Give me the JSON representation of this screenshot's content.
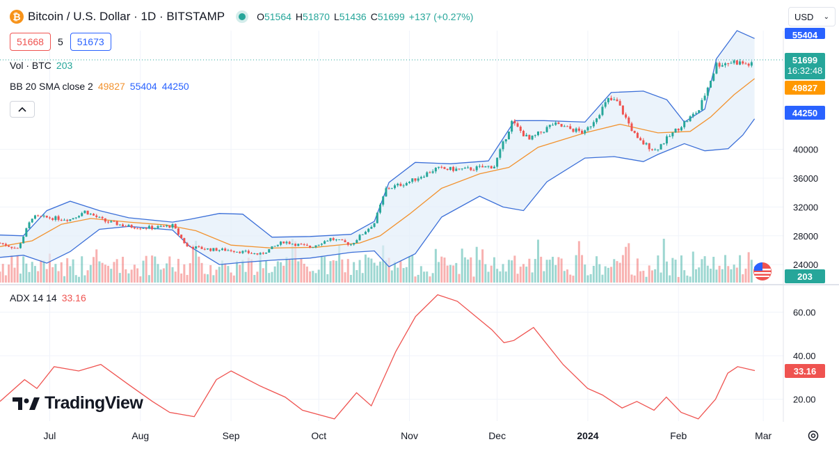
{
  "header": {
    "symbol_icon": "bitcoin-icon",
    "title": "Bitcoin / U.S. Dollar · 1D · BITSTAMP",
    "ohlc": {
      "o_label": "O",
      "o": "51564",
      "h_label": "H",
      "h": "51870",
      "l_label": "L",
      "l": "51436",
      "c_label": "C",
      "c": "51699",
      "change": "+137 (+0.27%)"
    }
  },
  "price_boxes": {
    "bid": "51668",
    "spread": "5",
    "ask": "51673"
  },
  "currency": {
    "selected": "USD"
  },
  "legends": {
    "vol": {
      "label": "Vol · BTC",
      "value": "203"
    },
    "bb": {
      "label": "BB 20 SMA close 2",
      "basis": "49827",
      "upper": "55404",
      "lower": "44250"
    },
    "adx": {
      "label": "ADX 14 14",
      "value": "33.16"
    }
  },
  "price_scale_tags": {
    "upper": "55404",
    "last": "51699",
    "countdown": "16:32:48",
    "basis": "49827",
    "lower": "44250",
    "volume": "203",
    "adx": "33.16"
  },
  "brand": "TradingView",
  "colors": {
    "up": "#26a69a",
    "down": "#ef5350",
    "basis": "#ff9800",
    "band": "#2962ff",
    "band_fill": "#e3eefa",
    "adx": "#ef5350",
    "grid": "#f0f3fa",
    "text": "#131722"
  },
  "chart_data": [
    {
      "type": "candlestick",
      "title": "Bitcoin / U.S. Dollar · 1D · BITSTAMP",
      "y_ticks": [
        24000,
        28000,
        32000,
        36000,
        40000
      ],
      "ylim": [
        21500,
        56500
      ],
      "x_ticks": [
        "Jul",
        "Aug",
        "Sep",
        "Oct",
        "Nov",
        "Dec",
        "2024",
        "Feb",
        "Mar"
      ],
      "x_range": [
        "2023-06-14",
        "2024-03-05"
      ],
      "close_path": [
        [
          "2023-06-14",
          27000
        ],
        [
          "2023-06-20",
          26200
        ],
        [
          "2023-06-25",
          30600
        ],
        [
          "2023-07-01",
          30500
        ],
        [
          "2023-07-08",
          30300
        ],
        [
          "2023-07-13",
          31400
        ],
        [
          "2023-07-20",
          30000
        ],
        [
          "2023-07-28",
          29300
        ],
        [
          "2023-08-05",
          29100
        ],
        [
          "2023-08-12",
          29400
        ],
        [
          "2023-08-17",
          26500
        ],
        [
          "2023-08-25",
          26100
        ],
        [
          "2023-09-01",
          26000
        ],
        [
          "2023-09-11",
          25400
        ],
        [
          "2023-09-19",
          27200
        ],
        [
          "2023-09-28",
          26400
        ],
        [
          "2023-10-05",
          27600
        ],
        [
          "2023-10-12",
          26800
        ],
        [
          "2023-10-20",
          29800
        ],
        [
          "2023-10-24",
          34500
        ],
        [
          "2023-11-01",
          35500
        ],
        [
          "2023-11-10",
          37300
        ],
        [
          "2023-11-20",
          37200
        ],
        [
          "2023-11-30",
          37700
        ],
        [
          "2023-12-06",
          43800
        ],
        [
          "2023-12-12",
          41300
        ],
        [
          "2023-12-20",
          43500
        ],
        [
          "2023-12-31",
          42300
        ],
        [
          "2024-01-08",
          46900
        ],
        [
          "2024-01-11",
          46600
        ],
        [
          "2024-01-18",
          41300
        ],
        [
          "2024-01-24",
          39900
        ],
        [
          "2024-02-01",
          43000
        ],
        [
          "2024-02-08",
          45500
        ],
        [
          "2024-02-14",
          51800
        ],
        [
          "2024-02-20",
          52200
        ],
        [
          "2024-02-26",
          51699
        ]
      ],
      "series": [
        {
          "name": "BB 20 SMA close 2 basis",
          "last": 49827,
          "points": [
            [
              "2023-06-14",
              26500
            ],
            [
              "2023-06-25",
              27300
            ],
            [
              "2023-07-05",
              29600
            ],
            [
              "2023-07-15",
              30400
            ],
            [
              "2023-07-28",
              29900
            ],
            [
              "2023-08-10",
              29500
            ],
            [
              "2023-08-20",
              28700
            ],
            [
              "2023-09-01",
              26700
            ],
            [
              "2023-09-15",
              26300
            ],
            [
              "2023-09-30",
              26400
            ],
            [
              "2023-10-15",
              27000
            ],
            [
              "2023-10-22",
              28000
            ],
            [
              "2023-11-01",
              31000
            ],
            [
              "2023-11-12",
              34600
            ],
            [
              "2023-11-25",
              36600
            ],
            [
              "2023-12-05",
              37500
            ],
            [
              "2023-12-15",
              40300
            ],
            [
              "2023-12-31",
              42300
            ],
            [
              "2024-01-12",
              43500
            ],
            [
              "2024-01-25",
              42300
            ],
            [
              "2024-02-05",
              42500
            ],
            [
              "2024-02-12",
              44500
            ],
            [
              "2024-02-20",
              47600
            ],
            [
              "2024-02-27",
              49827
            ]
          ]
        },
        {
          "name": "BB 20 SMA close 2 upper",
          "last": 55404,
          "points": [
            [
              "2023-06-14",
              28100
            ],
            [
              "2023-06-22",
              28000
            ],
            [
              "2023-06-30",
              31500
            ],
            [
              "2023-07-08",
              32800
            ],
            [
              "2023-07-18",
              31500
            ],
            [
              "2023-07-28",
              30500
            ],
            [
              "2023-08-12",
              29900
            ],
            [
              "2023-08-18",
              30300
            ],
            [
              "2023-08-28",
              31100
            ],
            [
              "2023-09-05",
              31000
            ],
            [
              "2023-09-15",
              27800
            ],
            [
              "2023-09-28",
              27900
            ],
            [
              "2023-10-12",
              28200
            ],
            [
              "2023-10-20",
              30000
            ],
            [
              "2023-10-25",
              35400
            ],
            [
              "2023-11-03",
              38200
            ],
            [
              "2023-11-15",
              38000
            ],
            [
              "2023-11-28",
              38400
            ],
            [
              "2023-12-07",
              44000
            ],
            [
              "2023-12-17",
              44000
            ],
            [
              "2023-12-31",
              43800
            ],
            [
              "2024-01-09",
              47900
            ],
            [
              "2024-01-20",
              48100
            ],
            [
              "2024-01-28",
              46900
            ],
            [
              "2024-02-03",
              43800
            ],
            [
              "2024-02-10",
              45600
            ],
            [
              "2024-02-14",
              52600
            ],
            [
              "2024-02-21",
              56500
            ],
            [
              "2024-02-27",
              55404
            ]
          ]
        },
        {
          "name": "BB 20 SMA close 2 lower",
          "last": 44250,
          "points": [
            [
              "2023-06-14",
              25000
            ],
            [
              "2023-06-22",
              25300
            ],
            [
              "2023-06-30",
              24200
            ],
            [
              "2023-07-08",
              25800
            ],
            [
              "2023-07-18",
              28900
            ],
            [
              "2023-07-28",
              29300
            ],
            [
              "2023-08-12",
              28800
            ],
            [
              "2023-08-18",
              26500
            ],
            [
              "2023-08-28",
              24000
            ],
            [
              "2023-09-05",
              24300
            ],
            [
              "2023-09-15",
              24600
            ],
            [
              "2023-09-28",
              24900
            ],
            [
              "2023-10-12",
              25700
            ],
            [
              "2023-10-20",
              25900
            ],
            [
              "2023-10-25",
              23700
            ],
            [
              "2023-11-03",
              25500
            ],
            [
              "2023-11-12",
              30600
            ],
            [
              "2023-11-25",
              33500
            ],
            [
              "2023-12-03",
              32000
            ],
            [
              "2023-12-10",
              31500
            ],
            [
              "2023-12-18",
              35500
            ],
            [
              "2023-12-31",
              38800
            ],
            [
              "2024-01-10",
              39000
            ],
            [
              "2024-01-20",
              38300
            ],
            [
              "2024-01-25",
              39300
            ],
            [
              "2024-02-03",
              40800
            ],
            [
              "2024-02-10",
              39800
            ],
            [
              "2024-02-18",
              40100
            ],
            [
              "2024-02-23",
              42000
            ],
            [
              "2024-02-27",
              44250
            ]
          ]
        },
        {
          "name": "Vol · BTC",
          "last": 203
        }
      ]
    },
    {
      "type": "line",
      "title": "ADX 14 14",
      "y_ticks": [
        20,
        40,
        60
      ],
      "ylim": [
        10,
        72
      ],
      "series": [
        {
          "name": "ADX 14 14",
          "last": 33.16,
          "points": [
            [
              "2023-06-14",
              19
            ],
            [
              "2023-06-24",
              29
            ],
            [
              "2023-06-29",
              25
            ],
            [
              "2023-07-06",
              35
            ],
            [
              "2023-07-16",
              33
            ],
            [
              "2023-07-25",
              36
            ],
            [
              "2023-08-05",
              27
            ],
            [
              "2023-08-15",
              19
            ],
            [
              "2023-08-22",
              14
            ],
            [
              "2023-09-01",
              12
            ],
            [
              "2023-09-10",
              29
            ],
            [
              "2023-09-16",
              33
            ],
            [
              "2023-09-28",
              26
            ],
            [
              "2023-10-08",
              21
            ],
            [
              "2023-10-15",
              15
            ],
            [
              "2023-10-28",
              11
            ],
            [
              "2023-11-06",
              23
            ],
            [
              "2023-11-12",
              17
            ],
            [
              "2023-11-22",
              42
            ],
            [
              "2023-11-30",
              58
            ],
            [
              "2023-12-09",
              68
            ],
            [
              "2023-12-17",
              65
            ],
            [
              "2023-12-31",
              52
            ],
            [
              "2024-01-05",
              46
            ],
            [
              "2024-01-09",
              47
            ],
            [
              "2024-01-17",
              53
            ],
            [
              "2024-01-29",
              36
            ],
            [
              "2024-02-08",
              25
            ],
            [
              "2024-02-14",
              22
            ],
            [
              "2024-02-22",
              16
            ],
            [
              "2024-02-28",
              19
            ],
            [
              "2024-03-06",
              15
            ],
            [
              "2024-03-11",
              21
            ],
            [
              "2024-03-17",
              14
            ],
            [
              "2024-03-24",
              11
            ],
            [
              "2024-03-31",
              20
            ],
            [
              "2024-04-05",
              32
            ],
            [
              "2024-04-09",
              35
            ],
            [
              "2024-04-16",
              33.16
            ]
          ]
        }
      ]
    }
  ]
}
